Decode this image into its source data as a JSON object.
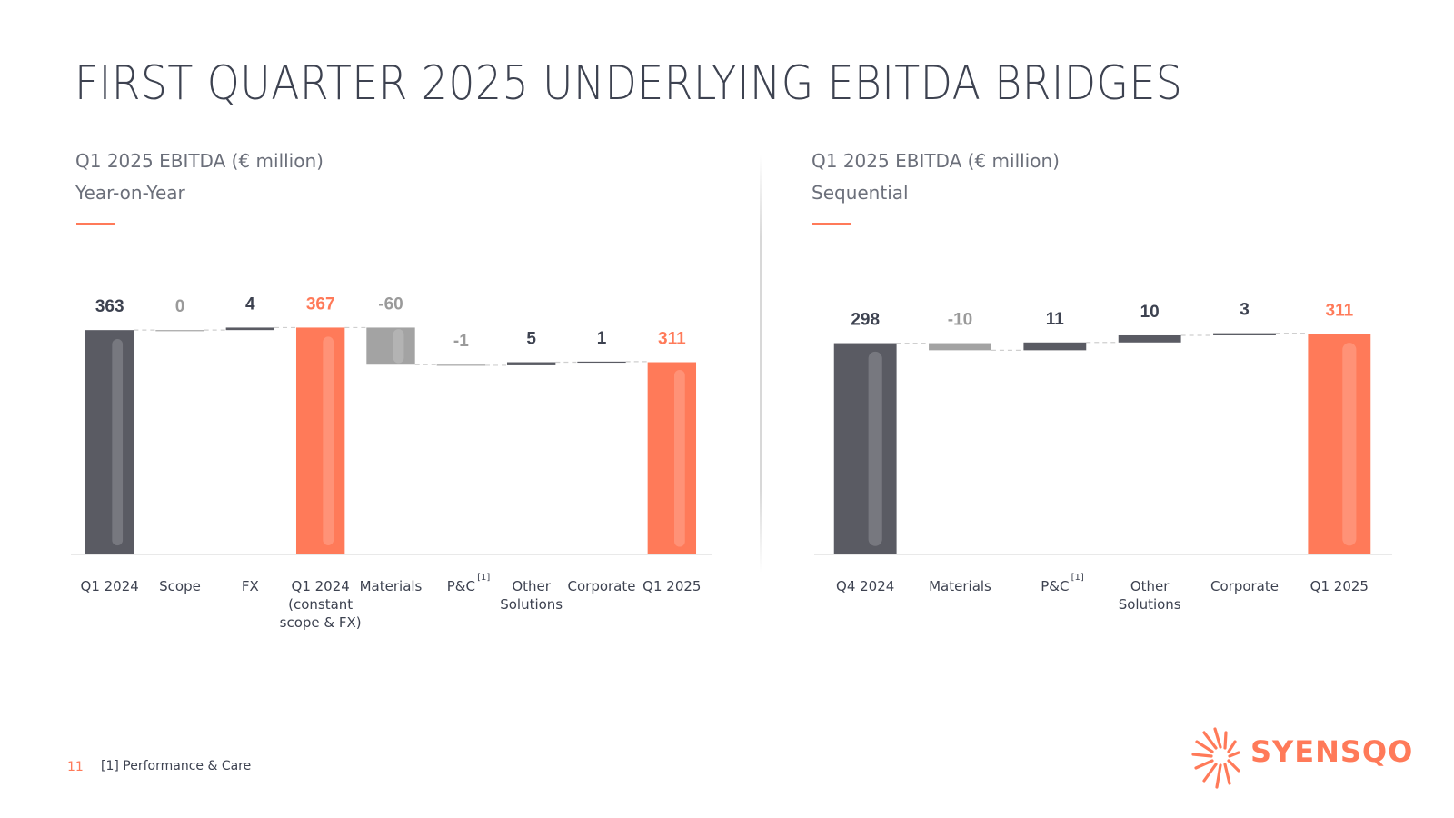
{
  "slide": {
    "title": "FIRST QUARTER 2025 UNDERLYING EBITDA BRIDGES",
    "page_number": "11",
    "footnote": "[1] Performance & Care",
    "brand": "SYENSQO"
  },
  "colors": {
    "accent": "#ff7a59",
    "dark_bar": "#5a5b63",
    "grey_bar": "#a3a3a3",
    "text": "#3d4250"
  },
  "panels": [
    {
      "heading": "Q1 2025 EBITDA (€ million)",
      "subheading": "Year-on-Year"
    },
    {
      "heading": "Q1 2025 EBITDA (€ million)",
      "subheading": "Sequential"
    }
  ],
  "chart_data": [
    {
      "type": "waterfall",
      "title": "Q1 2025 EBITDA (€ million)",
      "subtitle": "Year-on-Year",
      "categories": [
        "Q1 2024",
        "Scope",
        "FX",
        "Q1 2024 (constant scope & FX)",
        "Materials",
        "P&C",
        "Other Solutions",
        "Corporate",
        "Q1 2025"
      ],
      "category_lines": [
        [
          "Q1 2024"
        ],
        [
          "Scope"
        ],
        [
          "FX"
        ],
        [
          "Q1 2024",
          "(constant",
          "scope & FX)"
        ],
        [
          "Materials"
        ],
        [
          "P&C"
        ],
        [
          "Other",
          "Solutions"
        ],
        [
          "Corporate"
        ],
        [
          "Q1 2025"
        ]
      ],
      "footnote_marks": [
        "",
        "",
        "",
        "",
        "",
        "[1]",
        "",
        "",
        ""
      ],
      "values": [
        363,
        0,
        4,
        367,
        -60,
        -1,
        5,
        1,
        311
      ],
      "labels": [
        "363",
        "0",
        "4",
        "367",
        "-60",
        "-1",
        "5",
        "1",
        "311"
      ],
      "kinds": [
        "total",
        "delta",
        "delta",
        "subtotal",
        "delta",
        "delta",
        "delta",
        "delta",
        "total"
      ],
      "colors": [
        "dark",
        "grey",
        "dark",
        "accent",
        "grey",
        "grey",
        "dark",
        "dark",
        "accent"
      ],
      "label_colors": [
        "dark",
        "grey",
        "dark",
        "accent",
        "grey",
        "grey",
        "dark",
        "dark",
        "accent"
      ]
    },
    {
      "type": "waterfall",
      "title": "Q1 2025 EBITDA (€ million)",
      "subtitle": "Sequential",
      "categories": [
        "Q4 2024",
        "Materials",
        "P&C",
        "Other Solutions",
        "Corporate",
        "Q1 2025"
      ],
      "category_lines": [
        [
          "Q4 2024"
        ],
        [
          "Materials"
        ],
        [
          "P&C"
        ],
        [
          "Other",
          "Solutions"
        ],
        [
          "Corporate"
        ],
        [
          "Q1 2025"
        ]
      ],
      "footnote_marks": [
        "",
        "",
        "[1]",
        "",
        "",
        ""
      ],
      "values": [
        298,
        -10,
        11,
        10,
        3,
        311
      ],
      "labels": [
        "298",
        "-10",
        "11",
        "10",
        "3",
        "311"
      ],
      "kinds": [
        "total",
        "delta",
        "delta",
        "delta",
        "delta",
        "total"
      ],
      "colors": [
        "dark",
        "grey",
        "dark",
        "dark",
        "dark",
        "accent"
      ],
      "label_colors": [
        "dark",
        "grey",
        "dark",
        "dark",
        "dark",
        "accent"
      ]
    }
  ]
}
